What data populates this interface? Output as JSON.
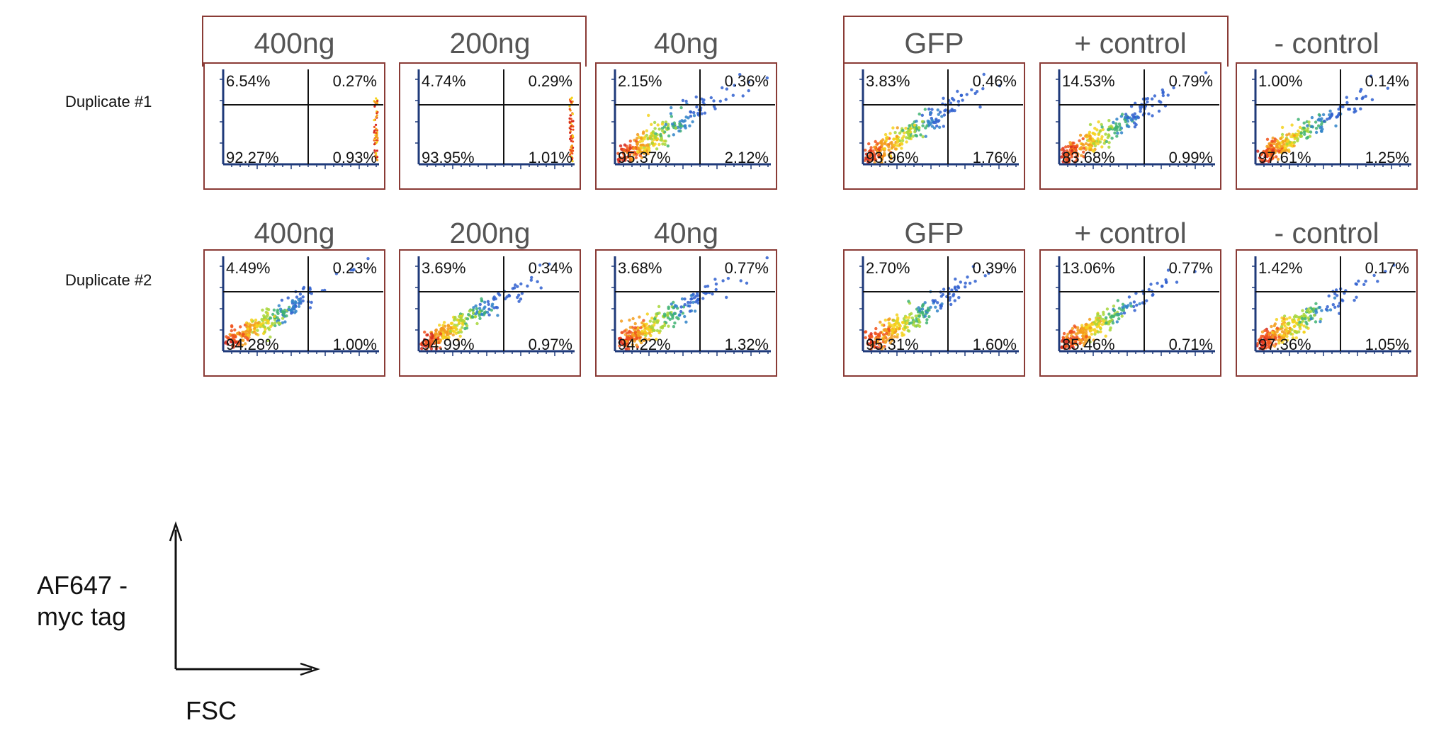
{
  "rows": [
    {
      "label": "Duplicate #1"
    },
    {
      "label": "Duplicate #2"
    }
  ],
  "colors": {
    "frame": "#8a3b36",
    "axis": "#1f3a7a",
    "gate": "#111111",
    "label": "#555555"
  },
  "chart_data": {
    "type": "scatter",
    "subtype": "flow-cytometry quadrant density plots",
    "xlabel": "FSC",
    "ylabel": "AF647 -\nmyc tag",
    "quadrant_order": [
      "upper-left",
      "upper-right",
      "lower-left",
      "lower-right"
    ],
    "panels": [
      {
        "row": 0,
        "col": 0,
        "condition": "400ng",
        "quadrants": [
          "6.54%",
          "0.27%",
          "92.27%",
          "0.93%"
        ],
        "scatter": "edge"
      },
      {
        "row": 0,
        "col": 1,
        "condition": "200ng",
        "quadrants": [
          "4.74%",
          "0.29%",
          "93.95%",
          "1.01%"
        ],
        "scatter": "edge"
      },
      {
        "row": 0,
        "col": 2,
        "condition": "40ng",
        "quadrants": [
          "2.15%",
          "0.36%",
          "95.37%",
          "2.12%"
        ],
        "scatter": "cloud"
      },
      {
        "row": 0,
        "col": 3,
        "condition": "GFP",
        "quadrants": [
          "3.83%",
          "0.46%",
          "93.96%",
          "1.76%"
        ],
        "scatter": "cloud"
      },
      {
        "row": 0,
        "col": 4,
        "condition": "+ control",
        "quadrants": [
          "14.53%",
          "0.79%",
          "83.68%",
          "0.99%"
        ],
        "scatter": "cloud"
      },
      {
        "row": 0,
        "col": 5,
        "condition": "- control",
        "quadrants": [
          "1.00%",
          "0.14%",
          "97.61%",
          "1.25%"
        ],
        "scatter": "cloud"
      },
      {
        "row": 1,
        "col": 0,
        "condition": "400ng",
        "quadrants": [
          "4.49%",
          "0.23%",
          "94.28%",
          "1.00%"
        ],
        "scatter": "cloud"
      },
      {
        "row": 1,
        "col": 1,
        "condition": "200ng",
        "quadrants": [
          "3.69%",
          "0.34%",
          "94.99%",
          "0.97%"
        ],
        "scatter": "cloud"
      },
      {
        "row": 1,
        "col": 2,
        "condition": "40ng",
        "quadrants": [
          "3.68%",
          "0.77%",
          "94.22%",
          "1.32%"
        ],
        "scatter": "cloud"
      },
      {
        "row": 1,
        "col": 3,
        "condition": "GFP",
        "quadrants": [
          "2.70%",
          "0.39%",
          "95.31%",
          "1.60%"
        ],
        "scatter": "cloud"
      },
      {
        "row": 1,
        "col": 4,
        "condition": "+ control",
        "quadrants": [
          "13.06%",
          "0.77%",
          "85.46%",
          "0.71%"
        ],
        "scatter": "cloud"
      },
      {
        "row": 1,
        "col": 5,
        "condition": "- control",
        "quadrants": [
          "1.42%",
          "0.17%",
          "97.36%",
          "1.05%"
        ],
        "scatter": "cloud"
      }
    ]
  }
}
